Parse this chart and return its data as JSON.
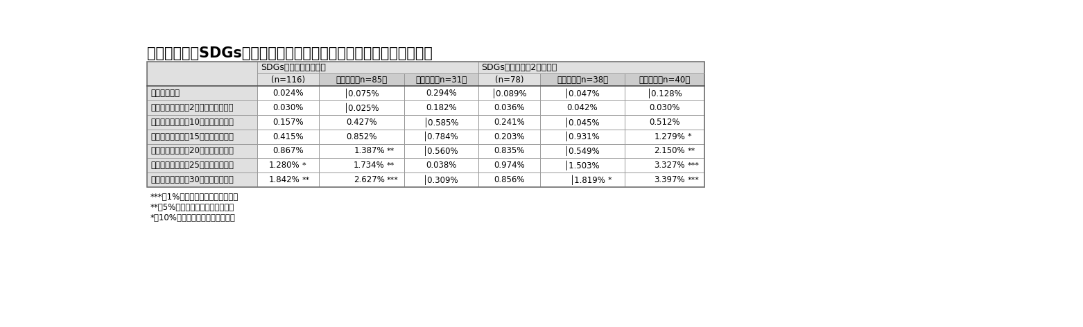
{
  "title": "》図表８》　SDGs関連債務による資金調達実績の有無と株価の反応",
  "group1_label": "SDGs関連債務　１回目",
  "group2_label": "SDGs関連債務　2回目以降",
  "sub_headers": [
    "(n=116)",
    "うち債券（n=85）",
    "うち融資（n=31）",
    "(n=78)",
    "うち債券（n=38）",
    "うち融資（n=40）"
  ],
  "row_labels": [
    "公表翔営業日",
    "公表翔営業日から2営業日　（累計）",
    "公表翔営業日から10営業日（累計）",
    "公表翔営業日から15営業日（累計）",
    "公表翔営業日から20営業日（累計）",
    "公表翔営業日から25営業日（累計）",
    "公表翔営業日から30営業日（累計）"
  ],
  "data": [
    [
      "0.024%",
      "│0.075%",
      "0.294%",
      "│0.089%",
      "│0.047%",
      "│0.128%"
    ],
    [
      "0.030%",
      "│0.025%",
      "0.182%",
      "0.036%",
      "0.042%",
      "0.030%"
    ],
    [
      "0.157%",
      "0.427%",
      "│0.585%",
      "0.241%",
      "│0.045%",
      "0.512%"
    ],
    [
      "0.415%",
      "0.852%",
      "│0.784%",
      "0.203%",
      "│0.931%",
      "1.279%"
    ],
    [
      "0.867%",
      "1.387%",
      "│0.560%",
      "0.835%",
      "│0.549%",
      "2.150%"
    ],
    [
      "1.280%",
      "1.734%",
      "0.038%",
      "0.974%",
      "│1.503%",
      "3.327%"
    ],
    [
      "1.842%",
      "2.627%",
      "│0.309%",
      "0.856%",
      "│1.819%",
      "3.397%"
    ]
  ],
  "significance": [
    [
      "",
      "",
      "",
      "",
      "",
      ""
    ],
    [
      "",
      "",
      "",
      "",
      "",
      ""
    ],
    [
      "",
      "",
      "",
      "",
      "",
      ""
    ],
    [
      "",
      "",
      "",
      "",
      "",
      "*"
    ],
    [
      "",
      "**",
      "",
      "",
      "",
      "**"
    ],
    [
      "*",
      "**",
      "",
      "",
      "",
      "***"
    ],
    [
      "**",
      "***",
      "",
      "",
      "*",
      "***"
    ]
  ],
  "footnotes": [
    "***　1%水準で統計的に有意である",
    "**　5%水準で統計的に有意である",
    "*　10%水準で統計的に有意である"
  ],
  "bg_light": "#e0e0e0",
  "bg_white": "#ffffff",
  "bg_inner": "#cccccc",
  "border_color": "#999999"
}
